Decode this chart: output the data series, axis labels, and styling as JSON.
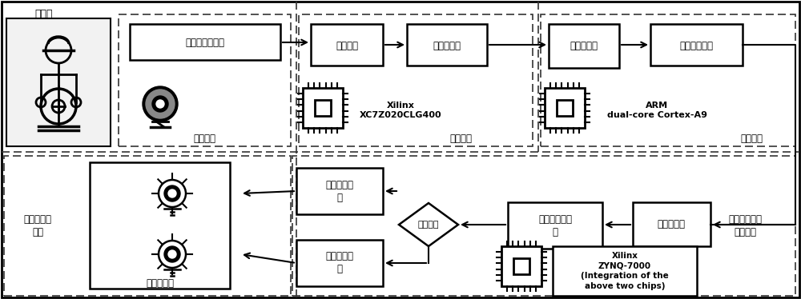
{
  "bg_color": "#ffffff",
  "figure_size": [
    10.0,
    3.74
  ],
  "dpi": 100,
  "top_left_label": "驾驶室",
  "sensor_module_label": "传感模块",
  "infrared_label": "红外增强摄像头",
  "accel_module_label": "加速模块",
  "processing_module_label": "处理模块",
  "box1_label": "图像加速",
  "box2_label": "图像预处理",
  "box3_label": "特征值提取",
  "box4_label": "五官位置确定",
  "xilinx1_label": "Xilinx\nXC7Z020CLG400",
  "arm_label": "ARM\ndual-core Cortex-A9",
  "bottom_left_label": "氛围灯调节\n模块",
  "smart_lamp_label": "智能氛围灯",
  "fatigue_rise_label": "疲劳骊升阶\n段",
  "fatigue_flat_label": "前期平缓阶\n段",
  "judge_label": "判断阶段",
  "analyze_label": "分析疲劳值趋势",
  "analyze_label2": "分析疲劳值趋\n势",
  "calc_label": "计算疲劳值",
  "xilinx2_label": "Xilinx\nZYNQ-7000\n(Integration of the\nabove two chips)",
  "fatigue_calc_label": "疲劳值计算与\n分析模块"
}
